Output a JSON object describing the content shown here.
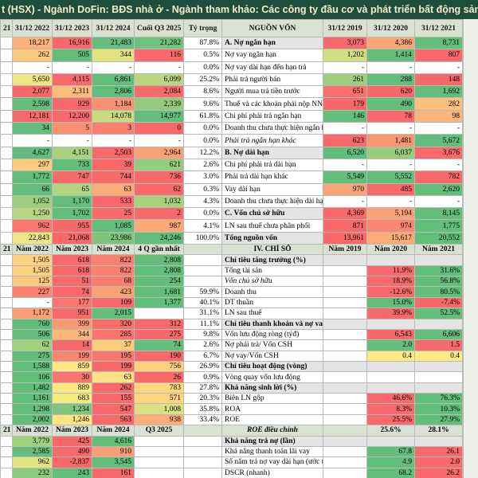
{
  "header": {
    "title": "t (HSX) - Ngành DoFin: BĐS nhà ở - Ngành tham khảo: Các công ty đầu cơ và phát triển bất động sản - Th"
  },
  "top": {
    "columns": [
      "21",
      "31/12 2022",
      "31/12 2023",
      "31/12 2024",
      "Cuối Q3 2025",
      "Tỷ trọng",
      "NGUỒN VỐN",
      "31/12 2019",
      "31/12 2020",
      "31/12 2021"
    ],
    "rows": [
      [
        null,
        "18,217",
        "16,916",
        "21,483",
        "21,282",
        "87.8%",
        "A. Nợ ngắn hạn",
        "3,073",
        "4,386",
        "8,731"
      ],
      [
        null,
        "262",
        "505",
        "344",
        "116",
        "0.5%",
        "Nợ vay ngắn hạn",
        "1,202",
        "1,414",
        "807"
      ],
      [
        null,
        "-",
        "-",
        "-",
        "-",
        "0.0%",
        "Nợ vay dài hạn đến hạn trả",
        "-",
        "-",
        "-"
      ],
      [
        null,
        "5,650",
        "4,115",
        "6,861",
        "6,099",
        "25.2%",
        "Phải trả người bán",
        "261",
        "288",
        "148"
      ],
      [
        null,
        "2,077",
        "2,311",
        "2,806",
        "2,084",
        "8.6%",
        "Người mua trả tiền trước",
        "651",
        "620",
        "1,692"
      ],
      [
        null,
        "2,598",
        "929",
        "1,184",
        "2,339",
        "9.6%",
        "Thuế và các khoản phải nộp NN",
        "179",
        "490",
        "282"
      ],
      [
        null,
        "12,181",
        "12,200",
        "14,078",
        "14,977",
        "61.8%",
        "Chi phí phải trả ngắn hạn",
        "146",
        "78",
        "98"
      ],
      [
        null,
        "34",
        "5",
        "3",
        "0",
        "0.0%",
        "Doanh thu chưa thực hiện ngắn hạn",
        "-",
        "-",
        "-"
      ],
      [
        null,
        "-",
        "-",
        "-",
        "-",
        "0.0%",
        "Phải trả ngắn hạn khác",
        "623",
        "1,481",
        "5,672"
      ],
      [
        null,
        "4,627",
        "4,151",
        "2,503",
        "2,964",
        "12.2%",
        "B. Nợ dài hạn",
        "6,520",
        "6,037",
        "3,676"
      ],
      [
        null,
        "297",
        "733",
        "39",
        "621",
        "2.6%",
        "Chi phí phải trả dài hạn",
        "-",
        "-",
        "-"
      ],
      [
        null,
        "1,772",
        "747",
        "744",
        "736",
        "3.0%",
        "Phải trả dài hạn khác",
        "5,549",
        "5,552",
        "782"
      ],
      [
        null,
        "66",
        "65",
        "63",
        "62",
        "0.3%",
        "Vay dài hạn",
        "970",
        "485",
        "2,620"
      ],
      [
        null,
        "1,052",
        "1,170",
        "533",
        "1,032",
        "4.3%",
        "Doanh thu chưa thực hiện dài hạn",
        "-",
        "-",
        "-"
      ],
      [
        null,
        "1,250",
        "1,702",
        "25",
        "2",
        "0.0%",
        "C. Vốn chủ sở hữu",
        "4,369",
        "5,194",
        "8,145"
      ],
      [
        null,
        "962",
        "955",
        "1,085",
        "987",
        "4.1%",
        "LN sau thuế chưa phân phối",
        "871",
        "974",
        "1,775"
      ],
      [
        null,
        "22,843",
        "21,068",
        "23,986",
        "24,246",
        "100.0%",
        "Tổng nguồn vốn",
        "13,961",
        "15,617",
        "20,552"
      ]
    ]
  },
  "bottom": {
    "columns": [
      "21",
      "Năm 2022",
      "Năm 2023",
      "Năm 2024",
      "4 Q gần nhất",
      null,
      "IV. CHỈ SỐ",
      "Năm 2019",
      "Năm 2020",
      "Năm 2021"
    ],
    "rows": [
      [
        null,
        "1,505",
        "618",
        "822",
        "2,808",
        null,
        "Chỉ tiêu tăng trưởng (%)",
        null,
        null,
        null
      ],
      [
        null,
        "1,505",
        "618",
        "822",
        "2,808",
        null,
        "Tổng tài sản",
        null,
        "11.9%",
        "31.6%"
      ],
      [
        null,
        "125",
        "51",
        "68",
        "254",
        null,
        "Vốn chủ sở hữu",
        null,
        "18.9%",
        "56.8%"
      ],
      [
        null,
        "227",
        "74",
        "423",
        "1,681",
        "59.9%",
        "Doanh thu",
        null,
        "-12.6%",
        "80.5%"
      ],
      [
        null,
        "-",
        "177",
        "109",
        "1,377",
        "40.1%",
        "DT thuần",
        null,
        "15.0%",
        "-7.4%"
      ],
      [
        null,
        "1,172",
        "951",
        "2,015",
        null,
        "31.1%",
        "LN sau thuế",
        null,
        "39.9%",
        "52.5%"
      ],
      [
        null,
        "760",
        "399",
        "320",
        "312",
        "11.1%",
        "Chỉ tiêu thanh khoản và nợ vay",
        null,
        null,
        null
      ],
      [
        null,
        "506",
        "344",
        "285",
        "275",
        "9.8%",
        "Vốn lưu động ròng (tỷđ)",
        null,
        "6,543",
        "6,606"
      ],
      [
        null,
        "62",
        "14",
        "37",
        "74",
        "2.6%",
        "Nợ phải trả/ Vốn CSH",
        null,
        "2.0",
        "1.5"
      ],
      [
        null,
        "275",
        "199",
        "195",
        "190",
        "6.7%",
        "Nợ vay/Vốn CSH",
        null,
        "0.4",
        "0.4"
      ],
      [
        null,
        "1,588",
        "859",
        "199",
        "756",
        "26.9%",
        "Chỉ tiêu hoạt động (vòng)",
        null,
        null,
        null
      ],
      [
        null,
        "106",
        "30",
        "63",
        "26",
        "0.9%",
        "Vòng quay vốn lưu động",
        null,
        null,
        null
      ],
      [
        null,
        "1,482",
        "889",
        "262",
        "783",
        "27.8%",
        "Khả năng sinh lời (%)",
        null,
        null,
        null
      ],
      [
        null,
        "1,161",
        "683",
        "155",
        "571",
        "20.3%",
        "Biên LN gộp",
        null,
        "46.6%",
        "76.3%"
      ],
      [
        null,
        "1,298",
        "1,234",
        "547",
        "1,008",
        "35.8%",
        "ROA",
        null,
        "8.3%",
        "10.3%"
      ],
      [
        null,
        "2,002",
        "1,246",
        "563",
        "938",
        "33.4%",
        "ROE",
        null,
        "25.5%",
        "27.9%"
      ],
      [
        "21",
        "Năm 2022",
        "Năm 2023",
        "Năm 2024",
        "Q3 2025",
        null,
        "ROE điều chỉnh",
        null,
        "25.6%",
        "28.1%"
      ],
      [
        null,
        "3,779",
        "425",
        "4,616",
        null,
        null,
        "Khả năng trả nợ (lần)",
        null,
        null,
        null
      ],
      [
        null,
        "2,585",
        "490",
        "910",
        null,
        null,
        "Khả năng thanh toán lãi vay",
        null,
        "67.8",
        "26.1"
      ],
      [
        null,
        "962",
        "-2,837",
        "3,545",
        null,
        null,
        "Số năm trả nợ vay dài hạn (ước tính)",
        null,
        "4.9",
        "2.0"
      ],
      [
        null,
        "232",
        "243",
        "161",
        null,
        null,
        "DSCR (nhanh)",
        null,
        "68.2",
        "26.2"
      ]
    ]
  }
}
